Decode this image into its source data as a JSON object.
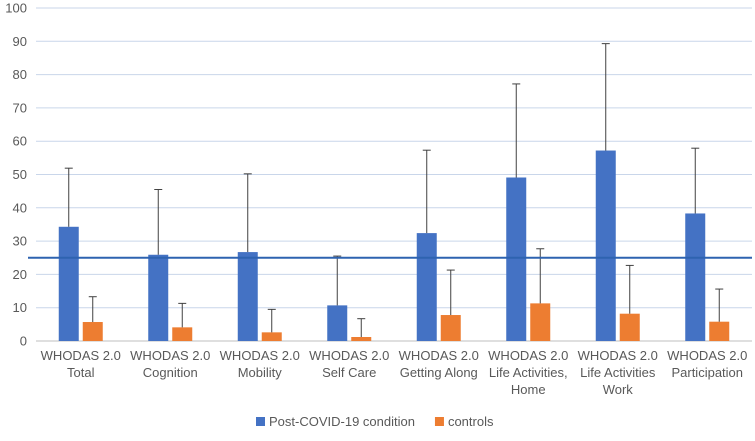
{
  "chart_data": {
    "type": "bar",
    "title": "",
    "xlabel": "",
    "ylabel": "",
    "ylim": [
      0,
      100
    ],
    "yticks": [
      0,
      10,
      20,
      30,
      40,
      50,
      60,
      70,
      80,
      90,
      100
    ],
    "grid": true,
    "legend_position": "bottom",
    "reference_line": 25,
    "categories": [
      [
        "WHODAS 2.0",
        "Total"
      ],
      [
        "WHODAS 2.0",
        "Cognition"
      ],
      [
        "WHODAS 2.0",
        "Mobility"
      ],
      [
        "WHODAS 2.0",
        "Self Care"
      ],
      [
        "WHODAS 2.0",
        "Getting Along"
      ],
      [
        "WHODAS 2.0",
        "Life Activities,",
        "Home"
      ],
      [
        "WHODAS 2.0",
        "Life Activities",
        "Work"
      ],
      [
        "WHODAS 2.0",
        "Participation"
      ]
    ],
    "series": [
      {
        "name": "Post-COVID-19 condition",
        "color": "#4472C4",
        "values": [
          34.3,
          25.9,
          26.7,
          10.7,
          32.4,
          49.1,
          57.2,
          38.3
        ],
        "error_upper": [
          51.9,
          45.5,
          50.2,
          25.5,
          57.3,
          77.2,
          89.3,
          57.9
        ]
      },
      {
        "name": "controls",
        "color": "#ED7D31",
        "values": [
          5.7,
          4.1,
          2.6,
          1.2,
          7.8,
          11.3,
          8.2,
          5.8
        ],
        "error_upper": [
          13.3,
          11.3,
          9.5,
          6.7,
          21.3,
          27.7,
          22.7,
          15.6
        ]
      }
    ]
  }
}
